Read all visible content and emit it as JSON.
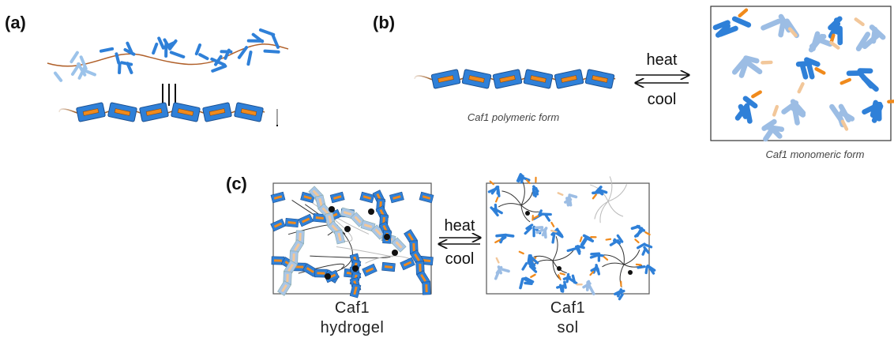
{
  "panels": [
    {
      "label": "(a)"
    },
    {
      "label": "(b)",
      "arrow": {
        "top": "heat",
        "bottom": "cool"
      },
      "captions": [
        "Caf1 polymeric form",
        "Caf1 monomeric form"
      ]
    },
    {
      "label": "(c)",
      "arrow": {
        "top": "heat",
        "bottom": "cool"
      },
      "captions": [
        [
          "Caf1",
          "hydrogel"
        ],
        [
          "Caf1",
          "sol"
        ]
      ]
    }
  ]
}
